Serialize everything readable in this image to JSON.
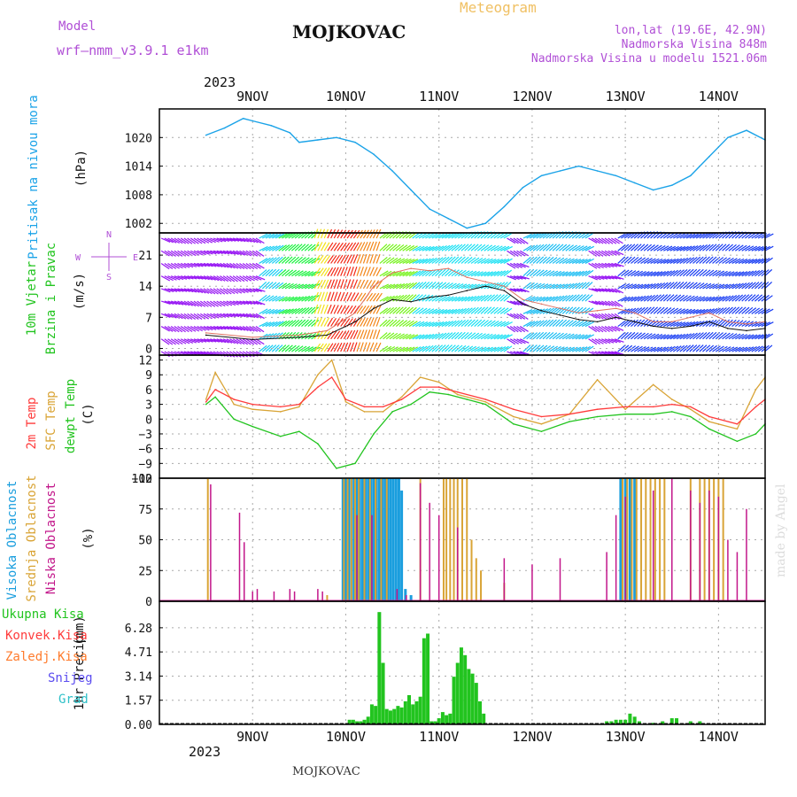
{
  "header": {
    "model_label": "Model",
    "model_name": "wrf—nmm_v3.9.1  e1km",
    "station": "MOJKOVAC",
    "title": "Meteogram",
    "lonlat": "lon,lat (19.6E, 42.9N)",
    "altitude": "Nadmorska Visina 848m",
    "model_altitude": "Nadmorska Visina u modelu 1521.06m",
    "year_top": "2023",
    "year_bottom": "2023",
    "footer_station": "MOJKOVAC",
    "credit": "made by Angel"
  },
  "colors": {
    "pressure": "#1ba3e8",
    "temp2m": "#ff3b3b",
    "sfc_temp": "#d9a436",
    "dewpoint": "#22c41f",
    "high_cloud": "#1a9ede",
    "mid_cloud": "#d9a436",
    "low_cloud": "#c2168a",
    "precip_total": "#22c41f",
    "label_purple": "#b04fd6"
  },
  "chart_data": [
    {
      "type": "line",
      "id": "pressure",
      "ylabel_left": "Pritisak na nivou mora",
      "ylabel_unit": "(hPa)",
      "categories": [
        "9NOV",
        "10NOV",
        "11NOV",
        "12NOV",
        "13NOV",
        "14NOV"
      ],
      "x_unit_days": "days from 8NOV 12:00",
      "ylim": [
        1000,
        1026
      ],
      "yticks": [
        1002,
        1008,
        1014,
        1020
      ],
      "grid": true,
      "series": [
        {
          "x": [
            0,
            0.2,
            0.4,
            0.5,
            0.7,
            0.9,
            1.0,
            1.2,
            1.4,
            1.6,
            1.8,
            2.0,
            2.2,
            2.4,
            2.6,
            2.8,
            3.0,
            3.2,
            3.4,
            3.6,
            3.8,
            4.0,
            4.2,
            4.4,
            4.6,
            4.8,
            5.0,
            5.2,
            5.4,
            5.6,
            5.8,
            6.0
          ],
          "y": [
            1020.5,
            1022.0,
            1024.0,
            1023.5,
            1022.5,
            1021.0,
            1019.0,
            1019.5,
            1020.0,
            1019.0,
            1016.5,
            1013.0,
            1009.0,
            1005.0,
            1003.0,
            1001.0,
            1002.0,
            1005.5,
            1009.5,
            1012.0,
            1013.0,
            1014.0,
            1013.0,
            1012.0,
            1010.5,
            1009.0,
            1010.0,
            1012.0,
            1016.0,
            1020.0,
            1021.5,
            1019.5
          ]
        }
      ]
    },
    {
      "type": "line",
      "id": "wind",
      "ylabel_left": "10m Vjetar",
      "ylabel_left2": "Brzina i Pravac",
      "ylabel_unit": "(m/s)",
      "compass_labels": [
        "N",
        "W",
        "E",
        "S"
      ],
      "ylim": [
        -1.5,
        26
      ],
      "yticks": [
        0,
        7,
        14,
        21
      ],
      "grid": true,
      "series": [
        {
          "name": "speed",
          "x": [
            0,
            0.5,
            1.0,
            1.3,
            1.6,
            1.8,
            2.0,
            2.2,
            2.4,
            2.6,
            2.8,
            3.0,
            3.2,
            3.4,
            3.6,
            3.8,
            4.0,
            4.2,
            4.4,
            4.6,
            4.8,
            5.0,
            5.2,
            5.4,
            5.6,
            5.8,
            6.0
          ],
          "y": [
            3.0,
            2.0,
            2.5,
            3.0,
            6.0,
            9.0,
            11.0,
            10.5,
            11.5,
            12.0,
            13.0,
            14.0,
            13.0,
            10.0,
            8.5,
            7.5,
            6.5,
            6.0,
            7.0,
            6.0,
            5.0,
            4.5,
            5.0,
            6.0,
            4.5,
            4.0,
            4.5
          ]
        },
        {
          "name": "gust",
          "x": [
            0,
            0.5,
            1.0,
            1.3,
            1.6,
            1.8,
            2.0,
            2.2,
            2.4,
            2.6,
            2.8,
            3.0,
            3.2,
            3.4,
            3.6,
            3.8,
            4.0,
            4.2,
            4.4,
            4.6,
            4.8,
            5.0,
            5.2,
            5.4,
            5.6,
            5.8,
            6.0
          ],
          "y": [
            3.5,
            2.5,
            3.0,
            4.0,
            8.0,
            14.0,
            17.0,
            18.0,
            17.5,
            18.0,
            16.0,
            15.0,
            14.0,
            11.0,
            10.0,
            9.0,
            8.0,
            8.5,
            9.0,
            8.0,
            6.0,
            6.0,
            7.0,
            8.0,
            6.0,
            5.5,
            6.0
          ]
        }
      ]
    },
    {
      "type": "line",
      "id": "temperature",
      "ylabel_left": "2m Temp",
      "ylabel_left2": "SFC Temp",
      "ylabel_left3": "dewpt Temp",
      "ylabel_unit": "(C)",
      "ylim": [
        -12,
        13
      ],
      "yticks": [
        -12,
        -9,
        -6,
        -3,
        0,
        3,
        6,
        9,
        12
      ],
      "grid": true,
      "series": [
        {
          "name": "2m Temp",
          "x": [
            0,
            0.1,
            0.3,
            0.5,
            0.8,
            1.0,
            1.2,
            1.35,
            1.5,
            1.7,
            1.9,
            2.1,
            2.3,
            2.5,
            2.7,
            3.0,
            3.3,
            3.6,
            3.9,
            4.2,
            4.5,
            4.8,
            5.0,
            5.2,
            5.4,
            5.7,
            5.9,
            6.0
          ],
          "y": [
            3.5,
            6.0,
            4.0,
            3.0,
            2.5,
            3.0,
            6.5,
            8.5,
            4.0,
            2.5,
            2.5,
            4.0,
            6.5,
            6.5,
            5.5,
            4.0,
            2.0,
            0.5,
            1.0,
            2.0,
            2.5,
            2.5,
            3.0,
            2.5,
            0.5,
            -1.0,
            2.5,
            4.0
          ]
        },
        {
          "name": "SFC Temp",
          "x": [
            0,
            0.1,
            0.3,
            0.5,
            0.8,
            1.0,
            1.2,
            1.35,
            1.5,
            1.7,
            1.9,
            2.1,
            2.3,
            2.5,
            2.7,
            3.0,
            3.3,
            3.6,
            3.9,
            4.2,
            4.5,
            4.8,
            5.0,
            5.2,
            5.4,
            5.7,
            5.9,
            6.0
          ],
          "y": [
            4.0,
            9.5,
            3.0,
            2.0,
            1.5,
            2.5,
            9.0,
            12.0,
            3.5,
            1.5,
            1.5,
            4.5,
            8.5,
            7.5,
            5.0,
            3.5,
            0.5,
            -1.0,
            1.0,
            8.0,
            2.0,
            7.0,
            4.0,
            2.0,
            -0.5,
            -2.0,
            6.0,
            8.5
          ]
        },
        {
          "name": "dewpt Temp",
          "x": [
            0,
            0.1,
            0.3,
            0.5,
            0.8,
            1.0,
            1.2,
            1.4,
            1.6,
            1.8,
            2.0,
            2.2,
            2.4,
            2.6,
            2.8,
            3.0,
            3.3,
            3.6,
            3.9,
            4.2,
            4.5,
            4.8,
            5.0,
            5.2,
            5.4,
            5.7,
            5.9,
            6.0
          ],
          "y": [
            3.0,
            4.5,
            0.0,
            -1.5,
            -3.5,
            -2.5,
            -5.0,
            -10.0,
            -9.0,
            -3.0,
            1.5,
            3.0,
            5.5,
            5.0,
            4.0,
            3.0,
            -1.0,
            -2.5,
            -0.5,
            0.5,
            1.0,
            1.0,
            1.5,
            0.5,
            -2.0,
            -4.5,
            -3.0,
            -1.0
          ]
        }
      ]
    },
    {
      "type": "bar",
      "id": "clouds",
      "ylabel_left": "Visoka Oblacnost",
      "ylabel_left2": "Srednja Oblacnost",
      "ylabel_left3": "Niska Oblacnost",
      "ylabel_unit": "(%)",
      "ylim": [
        0,
        100
      ],
      "yticks": [
        0,
        25,
        50,
        75,
        100
      ],
      "grid": true,
      "series": [
        {
          "name": "Visoka Oblacnost",
          "x": [
            1.47,
            1.5,
            1.53,
            1.56,
            1.59,
            1.62,
            1.65,
            1.68,
            1.71,
            1.74,
            1.77,
            1.8,
            1.83,
            1.86,
            1.89,
            1.92,
            1.95,
            1.98,
            2.01,
            2.04,
            2.07,
            2.1,
            2.14,
            2.2,
            2.25,
            4.45,
            4.5,
            4.55,
            4.6
          ],
          "values": [
            100,
            100,
            100,
            100,
            100,
            100,
            100,
            100,
            100,
            100,
            100,
            100,
            100,
            100,
            100,
            100,
            100,
            100,
            100,
            100,
            100,
            90,
            10,
            5,
            0,
            100,
            100,
            100,
            100
          ]
        },
        {
          "name": "Srednja Oblacnost",
          "x": [
            0.02,
            1.3,
            1.48,
            1.52,
            1.56,
            1.6,
            1.64,
            1.7,
            1.76,
            1.82,
            1.88,
            1.94,
            2.3,
            2.55,
            2.58,
            2.62,
            2.66,
            2.7,
            2.75,
            2.8,
            2.85,
            2.9,
            2.95,
            3.2,
            4.47,
            4.52,
            4.57,
            4.62,
            4.67,
            4.72,
            4.77,
            4.82,
            4.87,
            4.92,
            5.2,
            5.3,
            5.35,
            5.4,
            5.45,
            5.5,
            5.55
          ],
          "values": [
            100,
            5,
            100,
            100,
            100,
            100,
            100,
            100,
            100,
            100,
            100,
            100,
            100,
            100,
            100,
            100,
            100,
            100,
            100,
            100,
            50,
            35,
            25,
            15,
            100,
            100,
            100,
            100,
            100,
            100,
            100,
            100,
            100,
            100,
            100,
            100,
            100,
            100,
            100,
            100,
            100
          ]
        },
        {
          "name": "Niska Oblacnost",
          "x": [
            0.05,
            0.36,
            0.41,
            0.5,
            0.55,
            0.73,
            0.9,
            0.95,
            1.2,
            1.25,
            1.62,
            1.78,
            2.05,
            2.15,
            2.3,
            2.4,
            2.5,
            2.7,
            3.2,
            3.5,
            3.8,
            4.3,
            4.4,
            4.5,
            4.8,
            5.0,
            5.2,
            5.3,
            5.4,
            5.5,
            5.6,
            5.7,
            5.8
          ],
          "values": [
            95,
            72,
            48,
            8,
            10,
            8,
            10,
            8,
            10,
            8,
            70,
            70,
            10,
            5,
            96,
            80,
            70,
            60,
            35,
            30,
            35,
            40,
            70,
            85,
            90,
            100,
            90,
            80,
            90,
            85,
            50,
            40,
            75
          ]
        }
      ]
    },
    {
      "type": "bar",
      "id": "precip",
      "ylabel_left": "1hr Precip",
      "ylabel_unit": "(mm)",
      "legend": [
        "Ukupna Kisa",
        "Konvek.Kisa",
        "Zaledj.Kisa",
        "Snijeg",
        "Grad"
      ],
      "legend_colors": [
        "#22c41f",
        "#ff3b3b",
        "#ff7b2c",
        "#5b4cf0",
        "#2ec0c8"
      ],
      "ylim": [
        0,
        8.0
      ],
      "yticks": [
        0,
        1.57,
        3.14,
        4.71,
        6.28
      ],
      "grid": true,
      "series": [
        {
          "name": "Ukupna Kisa",
          "x": [
            1.54,
            1.58,
            1.62,
            1.66,
            1.7,
            1.74,
            1.78,
            1.82,
            1.86,
            1.9,
            1.94,
            1.98,
            2.02,
            2.06,
            2.1,
            2.14,
            2.18,
            2.22,
            2.26,
            2.3,
            2.34,
            2.38,
            2.42,
            2.46,
            2.5,
            2.54,
            2.58,
            2.62,
            2.66,
            2.7,
            2.74,
            2.78,
            2.82,
            2.86,
            2.9,
            2.94,
            2.98,
            4.3,
            4.35,
            4.4,
            4.45,
            4.5,
            4.55,
            4.6,
            4.65,
            4.8,
            4.9,
            5.0,
            5.05,
            5.2,
            5.3
          ],
          "values": [
            0.3,
            0.3,
            0.2,
            0.2,
            0.3,
            0.5,
            1.3,
            1.2,
            7.3,
            4.0,
            1.0,
            0.9,
            1.0,
            1.2,
            1.1,
            1.5,
            1.9,
            1.3,
            1.5,
            1.8,
            5.6,
            5.9,
            0.2,
            0.2,
            0.4,
            0.8,
            0.6,
            0.7,
            3.1,
            4.0,
            5.0,
            4.5,
            3.6,
            3.3,
            2.7,
            1.5,
            0.7,
            0.2,
            0.2,
            0.3,
            0.3,
            0.3,
            0.7,
            0.5,
            0.2,
            0.1,
            0.2,
            0.4,
            0.4,
            0.2,
            0.2
          ]
        }
      ]
    }
  ]
}
